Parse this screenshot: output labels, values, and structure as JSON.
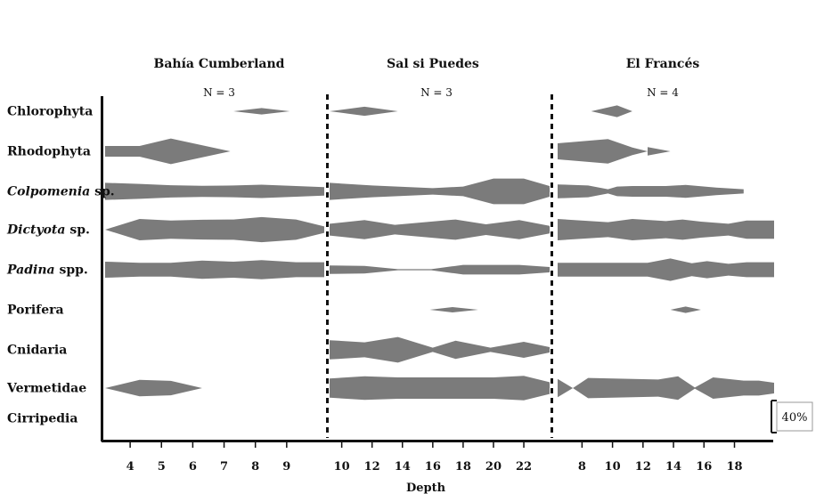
{
  "chart_data": {
    "type": "kite",
    "xlabel": "Depth",
    "scale_bar_label": "40%",
    "taxa": [
      {
        "label": "Chlorophyta",
        "genus": "",
        "suffix": ""
      },
      {
        "label": "Rhodophyta",
        "genus": "",
        "suffix": ""
      },
      {
        "label": "",
        "genus": "Colpomenia",
        "suffix": " sp."
      },
      {
        "label": "",
        "genus": "Dictyota",
        "suffix": " sp."
      },
      {
        "label": "",
        "genus": "Padina",
        "suffix": " spp."
      },
      {
        "label": "Porifera",
        "genus": "",
        "suffix": ""
      },
      {
        "label": "Cnidaria",
        "genus": "",
        "suffix": ""
      },
      {
        "label": "Vermetidae",
        "genus": "",
        "suffix": ""
      },
      {
        "label": "Cirripedia",
        "genus": "",
        "suffix": ""
      }
    ],
    "sites": [
      {
        "name": "Bahía Cumberland",
        "n_label": "N = 3",
        "depths": [
          4,
          5,
          6,
          7,
          8,
          9
        ],
        "tick_labels": [
          "4",
          "5",
          "6",
          "7",
          "8",
          "9"
        ],
        "kites": [
          [
            [
              7.3,
              0
            ],
            [
              8.2,
              12
            ],
            [
              9.1,
              0
            ]
          ],
          [
            [
              3.2,
              20
            ],
            [
              4.3,
              20
            ],
            [
              5.3,
              48
            ],
            [
              7.2,
              0
            ]
          ],
          [
            [
              3.2,
              32
            ],
            [
              4.3,
              28
            ],
            [
              5.3,
              23
            ],
            [
              6.3,
              21
            ],
            [
              7.3,
              22
            ],
            [
              8.2,
              25
            ],
            [
              9.3,
              20
            ],
            [
              10.2,
              16
            ]
          ],
          [
            [
              3.2,
              0
            ],
            [
              4.3,
              40
            ],
            [
              5.3,
              34
            ],
            [
              6.3,
              37
            ],
            [
              7.3,
              38
            ],
            [
              8.2,
              47
            ],
            [
              9.3,
              38
            ],
            [
              10.2,
              12
            ]
          ],
          [
            [
              3.2,
              30
            ],
            [
              4.3,
              26
            ],
            [
              5.3,
              26
            ],
            [
              6.3,
              34
            ],
            [
              7.3,
              30
            ],
            [
              8.2,
              36
            ],
            [
              9.3,
              28
            ],
            [
              10.2,
              28
            ]
          ],
          [],
          [],
          [
            [
              3.2,
              0
            ],
            [
              4.3,
              31
            ],
            [
              5.3,
              27
            ],
            [
              6.3,
              0
            ]
          ],
          []
        ]
      },
      {
        "name": "Sal si Puedes",
        "n_label": "N = 3",
        "depths": [
          10,
          12,
          14,
          16,
          18,
          20,
          22
        ],
        "tick_labels": [
          "10",
          "12",
          "14",
          "16",
          "18",
          "20",
          "22"
        ],
        "kites": [
          [
            [
              9.2,
              0
            ],
            [
              11.5,
              17
            ],
            [
              13.7,
              0
            ]
          ],
          [],
          [
            [
              9.2,
              32
            ],
            [
              12,
              22
            ],
            [
              16,
              12
            ],
            [
              18,
              18
            ],
            [
              20,
              48
            ],
            [
              22,
              48
            ],
            [
              23.7,
              20
            ]
          ],
          [
            [
              9.2,
              22
            ],
            [
              11.5,
              36
            ],
            [
              13.5,
              18
            ],
            [
              17.5,
              38
            ],
            [
              19.5,
              20
            ],
            [
              21.7,
              36
            ],
            [
              23.7,
              14
            ]
          ],
          [
            [
              9.2,
              16
            ],
            [
              11.5,
              14
            ],
            [
              13.7,
              2
            ],
            [
              15.9,
              2
            ],
            [
              18,
              18
            ],
            [
              21.7,
              18
            ],
            [
              23.7,
              10
            ]
          ],
          [
            [
              15.8,
              0
            ],
            [
              17.3,
              10
            ],
            [
              19,
              0
            ]
          ],
          [
            [
              9.2,
              36
            ],
            [
              11.5,
              28
            ],
            [
              13.7,
              48
            ],
            [
              16,
              8
            ],
            [
              17.5,
              34
            ],
            [
              19.8,
              8
            ],
            [
              22,
              30
            ],
            [
              23.7,
              10
            ]
          ],
          [
            [
              9.2,
              36
            ],
            [
              11.5,
              44
            ],
            [
              13.7,
              40
            ],
            [
              20,
              40
            ],
            [
              22,
              46
            ],
            [
              23.7,
              22
            ]
          ],
          []
        ]
      },
      {
        "name": "El Francés",
        "n_label": "N = 4",
        "depths": [
          8,
          10,
          12,
          14,
          16,
          18
        ],
        "tick_labels": [
          "8",
          "10",
          "12",
          "14",
          "16",
          "18"
        ],
        "kites": [
          [
            [
              8.6,
              0
            ],
            [
              10.3,
              22
            ],
            [
              11.3,
              0
            ]
          ],
          [
            [
              6.4,
              30
            ],
            [
              9.7,
              46
            ],
            [
              11.3,
              14
            ],
            [
              12.3,
              0
            ],
            [
              13.8,
              0
            ],
            [
              12.3,
              16
            ]
          ],
          [
            [
              6.4,
              26
            ],
            [
              8.4,
              22
            ],
            [
              9.7,
              8
            ],
            [
              10.3,
              18
            ],
            [
              11.3,
              20
            ],
            [
              13.5,
              20
            ],
            [
              14.8,
              24
            ],
            [
              16.8,
              14
            ],
            [
              18.6,
              8
            ]
          ],
          [
            [
              6.4,
              40
            ],
            [
              9.7,
              28
            ],
            [
              11.3,
              40
            ],
            [
              13.5,
              32
            ],
            [
              14.6,
              38
            ],
            [
              15.8,
              30
            ],
            [
              17.6,
              22
            ],
            [
              18.8,
              34
            ],
            [
              20.6,
              34
            ]
          ],
          [
            [
              6.4,
              26
            ],
            [
              9.7,
              26
            ],
            [
              12.3,
              26
            ],
            [
              13.8,
              42
            ],
            [
              15.2,
              24
            ],
            [
              16.2,
              32
            ],
            [
              17.6,
              22
            ],
            [
              18.8,
              28
            ],
            [
              20.6,
              28
            ]
          ],
          [
            [
              13.8,
              0
            ],
            [
              14.8,
              12
            ],
            [
              15.8,
              0
            ]
          ],
          [],
          [
            [
              6.4,
              34
            ],
            [
              7.4,
              0
            ],
            [
              8.4,
              38
            ],
            [
              13,
              32
            ],
            [
              14.3,
              44
            ],
            [
              15.4,
              2
            ],
            [
              16.6,
              40
            ],
            [
              18.6,
              28
            ],
            [
              19.6,
              28
            ],
            [
              20.6,
              20
            ]
          ],
          []
        ]
      }
    ]
  }
}
